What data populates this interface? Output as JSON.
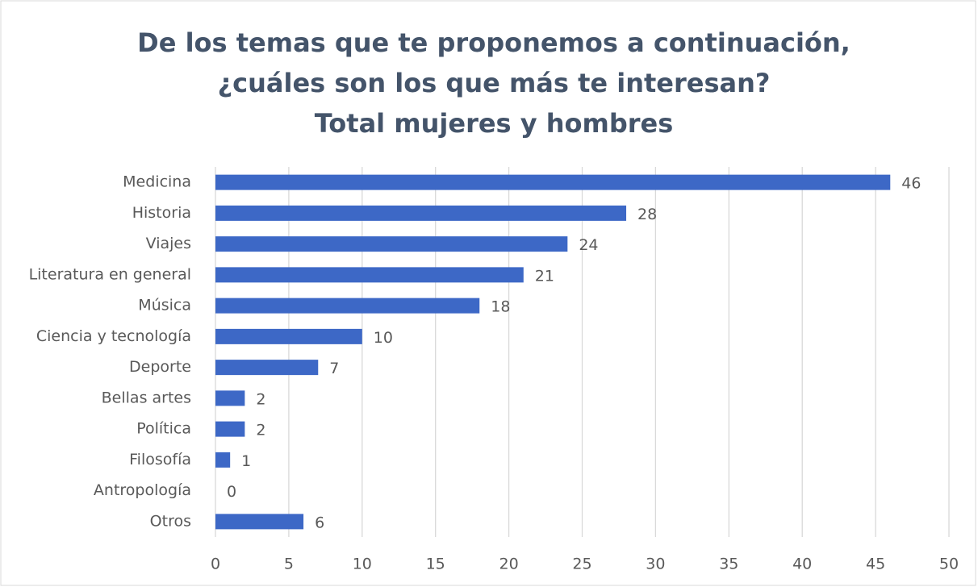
{
  "chart_data": {
    "type": "bar",
    "orientation": "horizontal",
    "title": [
      "De los temas que te proponemos a continuación,",
      "¿cuáles son los que más te interesan?",
      "Total mujeres y hombres"
    ],
    "categories": [
      "Medicina",
      "Historia",
      "Viajes",
      "Literatura en general",
      "Música",
      "Ciencia y tecnología",
      "Deporte",
      "Bellas artes",
      "Política",
      "Filosofía",
      "Antropología",
      "Otros"
    ],
    "values": [
      46,
      28,
      24,
      21,
      18,
      10,
      7,
      2,
      2,
      1,
      0,
      6
    ],
    "color": "#3d68c6",
    "xlim": [
      0,
      50
    ],
    "xticks": [
      0,
      5,
      10,
      15,
      20,
      25,
      30,
      35,
      40,
      45,
      50
    ],
    "grid": true
  }
}
